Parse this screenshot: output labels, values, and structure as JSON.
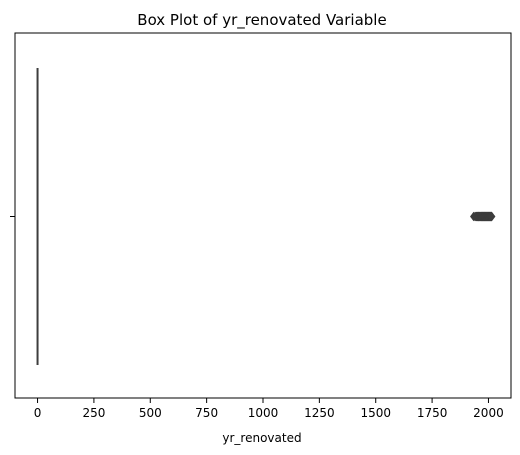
{
  "chart_data": {
    "type": "box",
    "title": "Box Plot of yr_renovated Variable",
    "xlabel": "yr_renovated",
    "ylabel": "",
    "orientation": "horizontal",
    "xlim": [
      -100,
      2100
    ],
    "xticks": [
      0,
      250,
      500,
      750,
      1000,
      1250,
      1500,
      1750,
      2000
    ],
    "xtick_labels": [
      "0",
      "250",
      "500",
      "750",
      "1000",
      "1250",
      "1500",
      "1750",
      "2000"
    ],
    "grid": false,
    "box": {
      "min": 0,
      "q1": 0,
      "median": 0,
      "q3": 0,
      "max": 0
    },
    "outlier_range": [
      1934,
      2015
    ],
    "outliers": [
      1934,
      1940,
      1944,
      1945,
      1946,
      1948,
      1950,
      1951,
      1953,
      1954,
      1955,
      1956,
      1957,
      1958,
      1959,
      1960,
      1962,
      1963,
      1964,
      1965,
      1967,
      1968,
      1969,
      1970,
      1971,
      1972,
      1973,
      1974,
      1975,
      1976,
      1977,
      1978,
      1979,
      1980,
      1981,
      1982,
      1983,
      1984,
      1985,
      1986,
      1987,
      1988,
      1989,
      1990,
      1991,
      1992,
      1993,
      1994,
      1995,
      1996,
      1997,
      1998,
      1999,
      2000,
      2001,
      2002,
      2003,
      2004,
      2005,
      2006,
      2007,
      2008,
      2009,
      2010,
      2011,
      2012,
      2013,
      2014,
      2015
    ],
    "colors": {
      "line": "#3d3d3d",
      "outlier": "#3d3d3d",
      "axis": "#000000"
    }
  }
}
